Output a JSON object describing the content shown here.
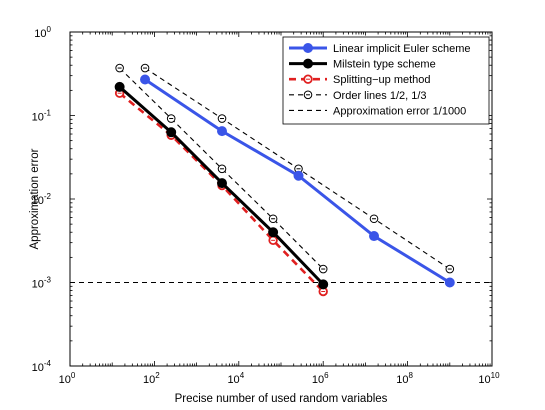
{
  "chart_data": {
    "type": "line",
    "title": "",
    "xlabel": "Precise number of used random variables",
    "ylabel": "Approximation error",
    "xscale": "log",
    "yscale": "log",
    "xlim": [
      1,
      10000000000
    ],
    "ylim": [
      0.0001,
      1
    ],
    "x_ticks": [
      {
        "base": "10",
        "exp": "0"
      },
      {
        "base": "10",
        "exp": "2"
      },
      {
        "base": "10",
        "exp": "4"
      },
      {
        "base": "10",
        "exp": "6"
      },
      {
        "base": "10",
        "exp": "8"
      },
      {
        "base": "10",
        "exp": "10"
      }
    ],
    "y_ticks": [
      {
        "base": "10",
        "exp": "-4"
      },
      {
        "base": "10",
        "exp": "-3"
      },
      {
        "base": "10",
        "exp": "-2"
      },
      {
        "base": "10",
        "exp": "-1"
      },
      {
        "base": "10",
        "exp": "0"
      }
    ],
    "grid": false,
    "legend_position": "top-right",
    "series": [
      {
        "name": "Linear implicit Euler scheme",
        "color": "#3a55e8",
        "style": "solid",
        "marker": "filled-circle",
        "x": [
          60,
          4000,
          260000,
          16000000,
          1000000000
        ],
        "y": [
          0.27,
          0.065,
          0.019,
          0.0036,
          0.001
        ]
      },
      {
        "name": "Milstein type scheme",
        "color": "#000000",
        "style": "solid",
        "marker": "filled-circle",
        "x": [
          15,
          250,
          4000,
          65000,
          1000000
        ],
        "y": [
          0.22,
          0.063,
          0.0155,
          0.004,
          0.00095
        ]
      },
      {
        "name": "Splitting−up method",
        "color": "#e02020",
        "style": "dashed",
        "marker": "open-circle",
        "x": [
          15,
          250,
          4000,
          65000,
          1000000
        ],
        "y": [
          0.185,
          0.058,
          0.0145,
          0.0032,
          0.00078
        ]
      },
      {
        "name": "Order lines 1/2, 1/3",
        "color": "#000000",
        "style": "dashed",
        "marker": "open-circle",
        "x": [
          15,
          250,
          4000,
          65000,
          1000000
        ],
        "y": [
          0.37,
          0.092,
          0.023,
          0.0058,
          0.00145
        ]
      },
      {
        "name": "",
        "color": "#000000",
        "style": "dashed",
        "marker": "open-circle",
        "x": [
          60,
          4000,
          260000,
          16000000,
          1000000000
        ],
        "y": [
          0.37,
          0.092,
          0.023,
          0.0058,
          0.00145
        ]
      },
      {
        "name": "Approximation error 1/1000",
        "color": "#000000",
        "style": "dashed",
        "marker": "none",
        "x": [
          1,
          10000000000
        ],
        "y": [
          0.001,
          0.001
        ]
      }
    ]
  }
}
